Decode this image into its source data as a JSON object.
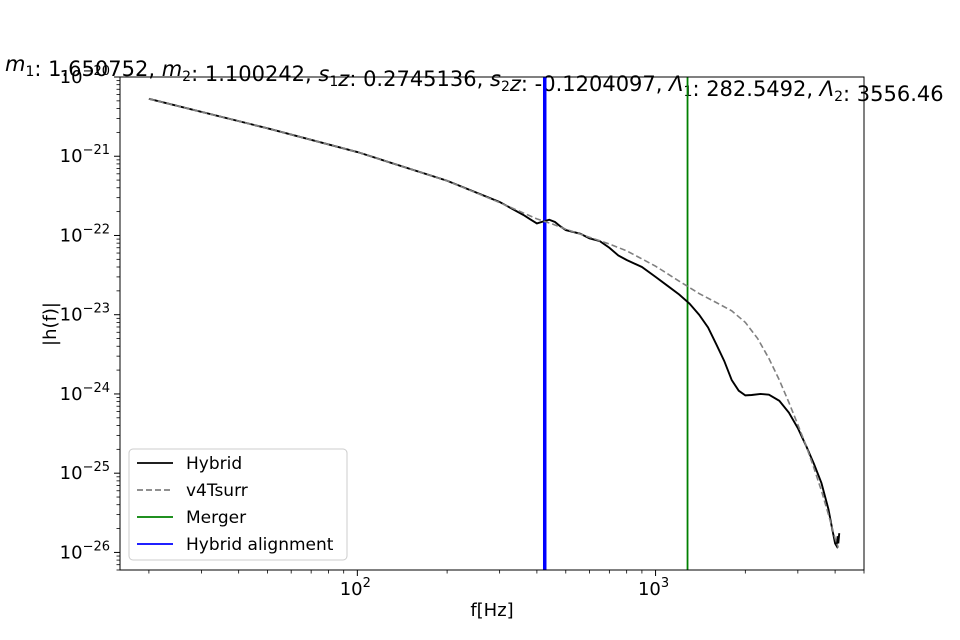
{
  "chart_data": {
    "type": "line",
    "title_parts": [
      {
        "var": "m",
        "sub": "1",
        "val": "1.650752"
      },
      {
        "var": "m",
        "sub": "2",
        "val": "1.100242"
      },
      {
        "var": "s",
        "sub": "1",
        "post": "z",
        "val": "0.2745136"
      },
      {
        "var": "s",
        "sub": "2",
        "post": "z",
        "val": "-0.1204097"
      },
      {
        "var": "Λ",
        "sub": "1",
        "val": "282.5492"
      },
      {
        "var": "Λ",
        "sub": "2",
        "val": "3556.46"
      }
    ],
    "xlabel": "f[Hz]",
    "ylabel": "|h(f)|",
    "xscale": "log",
    "yscale": "log",
    "xlim": [
      16,
      5000
    ],
    "ylim": [
      6e-27,
      1e-20
    ],
    "x_ticks": [
      {
        "value": 100,
        "base": "10",
        "exp": "2"
      },
      {
        "value": 1000,
        "base": "10",
        "exp": "3"
      }
    ],
    "y_ticks": [
      {
        "value": 1e-20,
        "base": "10",
        "exp": "−20"
      },
      {
        "value": 1e-21,
        "base": "10",
        "exp": "−21"
      },
      {
        "value": 1e-22,
        "base": "10",
        "exp": "−22"
      },
      {
        "value": 1e-23,
        "base": "10",
        "exp": "−23"
      },
      {
        "value": 1e-24,
        "base": "10",
        "exp": "−24"
      },
      {
        "value": 1e-25,
        "base": "10",
        "exp": "−25"
      },
      {
        "value": 1e-26,
        "base": "10",
        "exp": "−26"
      }
    ],
    "series": [
      {
        "name": "Hybrid",
        "color": "#000000",
        "style": "solid",
        "points": [
          [
            20,
            5.3e-21
          ],
          [
            50,
            2.25e-21
          ],
          [
            100,
            1.13e-21
          ],
          [
            200,
            4.9e-22
          ],
          [
            300,
            2.65e-22
          ],
          [
            360,
            1.82e-22
          ],
          [
            380,
            1.6e-22
          ],
          [
            400,
            1.42e-22
          ],
          [
            420,
            1.5e-22
          ],
          [
            440,
            1.58e-22
          ],
          [
            460,
            1.48e-22
          ],
          [
            480,
            1.3e-22
          ],
          [
            500,
            1.17e-22
          ],
          [
            560,
            1.05e-22
          ],
          [
            600,
            9.2e-23
          ],
          [
            650,
            8.5e-23
          ],
          [
            700,
            7e-23
          ],
          [
            750,
            5.6e-23
          ],
          [
            800,
            4.9e-23
          ],
          [
            900,
            4e-23
          ],
          [
            1000,
            3e-23
          ],
          [
            1100,
            2.3e-23
          ],
          [
            1200,
            1.8e-23
          ],
          [
            1300,
            1.38e-23
          ],
          [
            1400,
            1e-23
          ],
          [
            1500,
            6.9e-24
          ],
          [
            1600,
            4.2e-24
          ],
          [
            1700,
            2.6e-24
          ],
          [
            1800,
            1.5e-24
          ],
          [
            1900,
            1.1e-24
          ],
          [
            2000,
            9.6e-25
          ],
          [
            2100,
            9.7e-25
          ],
          [
            2250,
            1e-24
          ],
          [
            2400,
            9.8e-25
          ],
          [
            2600,
            8.2e-25
          ],
          [
            2800,
            5.8e-25
          ],
          [
            3000,
            3.7e-25
          ],
          [
            3200,
            2.2e-25
          ],
          [
            3400,
            1.3e-25
          ],
          [
            3600,
            7.5e-26
          ],
          [
            3800,
            3.5e-26
          ],
          [
            3900,
            2.1e-26
          ],
          [
            4000,
            1.3e-26
          ],
          [
            4050,
            1.2e-26
          ],
          [
            4080,
            1.6e-26
          ],
          [
            4100,
            1.3e-26
          ],
          [
            4130,
            1.75e-26
          ]
        ]
      },
      {
        "name": "v4Tsurr",
        "color": "#808080",
        "style": "dashed",
        "points": [
          [
            20,
            5.3e-21
          ],
          [
            50,
            2.25e-21
          ],
          [
            100,
            1.13e-21
          ],
          [
            200,
            4.9e-22
          ],
          [
            300,
            2.6e-22
          ],
          [
            400,
            1.62e-22
          ],
          [
            450,
            1.4e-22
          ],
          [
            500,
            1.2e-22
          ],
          [
            600,
            9.5e-23
          ],
          [
            700,
            7.8e-23
          ],
          [
            800,
            6.4e-23
          ],
          [
            1000,
            4.1e-23
          ],
          [
            1200,
            2.65e-23
          ],
          [
            1400,
            1.85e-23
          ],
          [
            1600,
            1.42e-23
          ],
          [
            1800,
            1.12e-23
          ],
          [
            2000,
            8e-24
          ],
          [
            2200,
            5e-24
          ],
          [
            2400,
            2.8e-24
          ],
          [
            2600,
            1.5e-24
          ],
          [
            2800,
            7.8e-25
          ],
          [
            3000,
            4.1e-25
          ],
          [
            3200,
            2.2e-25
          ],
          [
            3400,
            1.15e-25
          ],
          [
            3600,
            6e-26
          ],
          [
            3800,
            3e-26
          ],
          [
            4000,
            1.5e-26
          ],
          [
            4100,
            1.15e-26
          ]
        ]
      }
    ],
    "vlines": [
      {
        "name": "Merger",
        "x": 1280,
        "color": "#008000",
        "width": 1.8
      },
      {
        "name": "Hybrid alignment",
        "x": 425,
        "color": "#0000FF",
        "width": 3.5
      }
    ],
    "legend": {
      "position": "lower-left",
      "entries": [
        {
          "label": "Hybrid",
          "color": "#000000",
          "style": "solid"
        },
        {
          "label": "v4Tsurr",
          "color": "#808080",
          "style": "dashed"
        },
        {
          "label": "Merger",
          "color": "#008000",
          "style": "solid"
        },
        {
          "label": "Hybrid alignment",
          "color": "#0000FF",
          "style": "solid"
        }
      ]
    },
    "grid": false
  }
}
